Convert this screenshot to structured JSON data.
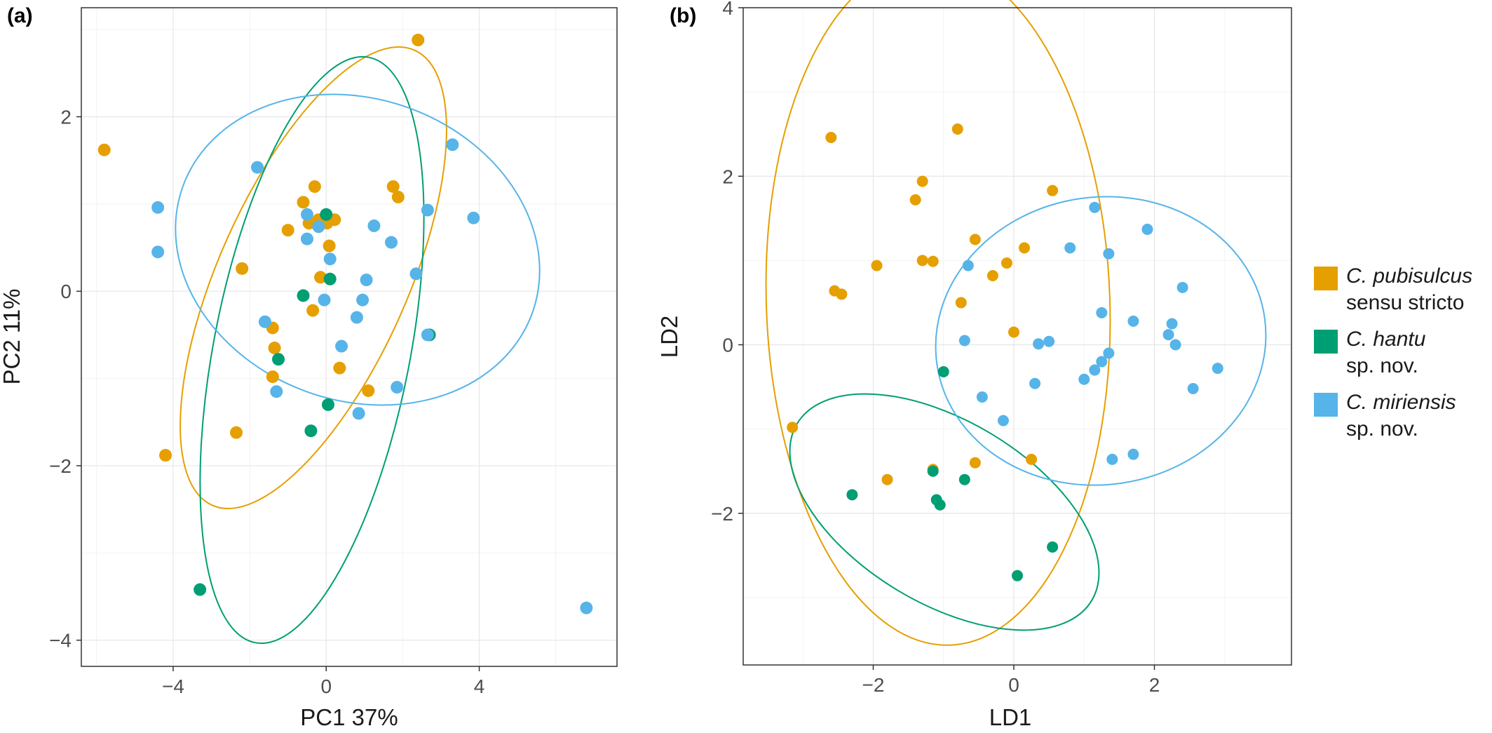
{
  "panels": {
    "a": {
      "tag": "(a)"
    },
    "b": {
      "tag": "(b)"
    }
  },
  "colors": {
    "C. pubisulcus": "#E69F00",
    "C. hantu": "#009E73",
    "C. miriensis": "#56B4E9"
  },
  "legend": [
    {
      "species": "C. pubisulcus",
      "qualifier": "sensu stricto",
      "color": "#E69F00"
    },
    {
      "species": "C. hantu",
      "qualifier": "sp. nov.",
      "color": "#009E73"
    },
    {
      "species": "C. miriensis",
      "qualifier": "sp. nov.",
      "color": "#56B4E9"
    }
  ],
  "chart_data": [
    {
      "panel": "(a)",
      "type": "scatter",
      "title": "",
      "xlabel": "PC1 37%",
      "ylabel": "PC2 11%",
      "xlim": [
        -6.4,
        7.6
      ],
      "ylim": [
        -4.3,
        3.25
      ],
      "xticks": [
        -4,
        0,
        4
      ],
      "yticks": [
        -4,
        -2,
        0,
        2
      ],
      "xtick_labels": [
        "−4",
        "0",
        "4"
      ],
      "ytick_labels": [
        "−4",
        "−2",
        "0",
        "2"
      ],
      "grid": true,
      "ellipses": true,
      "series": [
        {
          "name": "C. pubisulcus",
          "color": "#E69F00",
          "points": [
            [
              -5.8,
              1.62
            ],
            [
              2.4,
              2.88
            ],
            [
              -0.3,
              1.2
            ],
            [
              -0.6,
              1.02
            ],
            [
              -0.2,
              0.82
            ],
            [
              -1.0,
              0.7
            ],
            [
              0.02,
              0.78
            ],
            [
              -0.45,
              0.78
            ],
            [
              0.22,
              0.82
            ],
            [
              1.75,
              1.2
            ],
            [
              1.88,
              1.08
            ],
            [
              -2.2,
              0.26
            ],
            [
              0.08,
              0.52
            ],
            [
              -0.15,
              0.16
            ],
            [
              -1.4,
              -0.42
            ],
            [
              -1.35,
              -0.65
            ],
            [
              -0.35,
              -0.22
            ],
            [
              0.35,
              -0.88
            ],
            [
              -1.4,
              -0.98
            ],
            [
              1.1,
              -1.14
            ],
            [
              -2.35,
              -1.62
            ],
            [
              -4.2,
              -1.88
            ]
          ]
        },
        {
          "name": "C. hantu",
          "color": "#009E73",
          "points": [
            [
              0.0,
              0.88
            ],
            [
              0.1,
              0.14
            ],
            [
              -0.6,
              -0.05
            ],
            [
              -1.25,
              -0.78
            ],
            [
              2.7,
              -0.5
            ],
            [
              0.05,
              -1.3
            ],
            [
              -0.4,
              -1.6
            ],
            [
              -3.3,
              -3.42
            ]
          ]
        },
        {
          "name": "C. miriensis",
          "color": "#56B4E9",
          "points": [
            [
              -1.8,
              1.42
            ],
            [
              -4.4,
              0.96
            ],
            [
              -4.4,
              0.45
            ],
            [
              -0.5,
              0.88
            ],
            [
              -0.2,
              0.74
            ],
            [
              -0.5,
              0.6
            ],
            [
              0.1,
              0.37
            ],
            [
              1.25,
              0.75
            ],
            [
              1.7,
              0.56
            ],
            [
              2.65,
              0.93
            ],
            [
              3.3,
              1.68
            ],
            [
              3.85,
              0.84
            ],
            [
              2.35,
              0.2
            ],
            [
              1.05,
              0.13
            ],
            [
              -0.05,
              -0.1
            ],
            [
              0.95,
              -0.1
            ],
            [
              0.8,
              -0.3
            ],
            [
              -1.6,
              -0.35
            ],
            [
              0.4,
              -0.63
            ],
            [
              2.65,
              -0.5
            ],
            [
              -1.3,
              -1.15
            ],
            [
              1.85,
              -1.1
            ],
            [
              0.85,
              -1.4
            ],
            [
              6.8,
              -3.63
            ]
          ]
        }
      ]
    },
    {
      "panel": "(b)",
      "type": "scatter",
      "title": "",
      "xlabel": "LD1",
      "ylabel": "LD2",
      "xlim": [
        -3.85,
        3.95
      ],
      "ylim": [
        -3.8,
        4.0
      ],
      "xticks": [
        -2,
        0,
        2
      ],
      "yticks": [
        -2,
        0,
        2,
        4
      ],
      "xtick_labels": [
        "−2",
        "0",
        "2"
      ],
      "ytick_labels": [
        "−2",
        "0",
        "2",
        "4"
      ],
      "grid": true,
      "ellipses": true,
      "series": [
        {
          "name": "C. pubisulcus",
          "color": "#E69F00",
          "points": [
            [
              -2.6,
              2.46
            ],
            [
              -0.8,
              2.56
            ],
            [
              -1.3,
              1.94
            ],
            [
              -1.4,
              1.72
            ],
            [
              0.55,
              1.83
            ],
            [
              -0.55,
              1.25
            ],
            [
              0.15,
              1.15
            ],
            [
              -0.1,
              0.97
            ],
            [
              -1.3,
              1.0
            ],
            [
              -1.15,
              0.99
            ],
            [
              -1.95,
              0.94
            ],
            [
              -0.3,
              0.82
            ],
            [
              -2.55,
              0.64
            ],
            [
              -2.45,
              0.6
            ],
            [
              -0.75,
              0.5
            ],
            [
              0.0,
              0.15
            ],
            [
              -3.15,
              -0.98
            ],
            [
              -1.8,
              -1.6
            ],
            [
              -1.15,
              -1.48
            ],
            [
              -0.55,
              -1.4
            ],
            [
              0.25,
              -1.36
            ]
          ]
        },
        {
          "name": "C. hantu",
          "color": "#009E73",
          "points": [
            [
              -1.0,
              -0.32
            ],
            [
              -1.15,
              -1.5
            ],
            [
              -0.7,
              -1.6
            ],
            [
              -2.3,
              -1.78
            ],
            [
              -1.1,
              -1.84
            ],
            [
              -1.05,
              -1.9
            ],
            [
              0.55,
              -2.4
            ],
            [
              0.05,
              -2.74
            ]
          ]
        },
        {
          "name": "C. miriensis",
          "color": "#56B4E9",
          "points": [
            [
              1.15,
              1.63
            ],
            [
              1.9,
              1.37
            ],
            [
              0.8,
              1.15
            ],
            [
              1.35,
              1.08
            ],
            [
              -0.65,
              0.94
            ],
            [
              2.4,
              0.68
            ],
            [
              1.25,
              0.38
            ],
            [
              1.7,
              0.28
            ],
            [
              2.25,
              0.25
            ],
            [
              2.2,
              0.12
            ],
            [
              -0.7,
              0.05
            ],
            [
              0.5,
              0.04
            ],
            [
              0.35,
              0.01
            ],
            [
              2.3,
              0.0
            ],
            [
              1.35,
              -0.1
            ],
            [
              1.25,
              -0.2
            ],
            [
              1.15,
              -0.3
            ],
            [
              2.9,
              -0.28
            ],
            [
              1.0,
              -0.41
            ],
            [
              0.3,
              -0.46
            ],
            [
              2.55,
              -0.52
            ],
            [
              -0.45,
              -0.62
            ],
            [
              -0.15,
              -0.9
            ],
            [
              1.7,
              -1.3
            ],
            [
              1.4,
              -1.36
            ]
          ]
        }
      ]
    }
  ]
}
